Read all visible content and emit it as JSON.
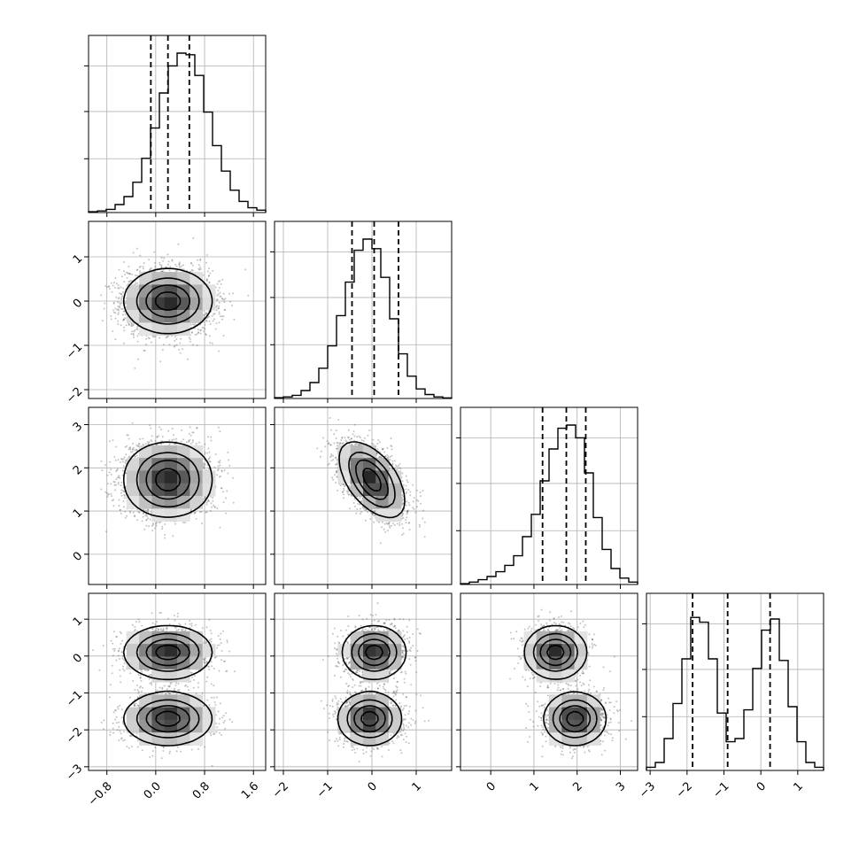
{
  "chart_data": {
    "type": "corner",
    "params": [
      {
        "range": [
          -1.1,
          1.8
        ],
        "ticks": [
          {
            "v": -0.8,
            "label": "−0.8"
          },
          {
            "v": 0.0,
            "label": "0.0"
          },
          {
            "v": 0.8,
            "label": "0.8"
          },
          {
            "v": 1.6,
            "label": "1.6"
          }
        ],
        "quantiles": [
          -0.08,
          0.2,
          0.55
        ]
      },
      {
        "range": [
          -2.2,
          1.8
        ],
        "ticks": [
          {
            "v": -2,
            "label": "−2"
          },
          {
            "v": -1,
            "label": "−1"
          },
          {
            "v": 0,
            "label": "0"
          },
          {
            "v": 1,
            "label": "1"
          }
        ],
        "quantiles": [
          -0.45,
          0.05,
          0.6
        ]
      },
      {
        "range": [
          -0.7,
          3.4
        ],
        "ticks": [
          {
            "v": 0,
            "label": "0"
          },
          {
            "v": 1,
            "label": "1"
          },
          {
            "v": 2,
            "label": "2"
          },
          {
            "v": 3,
            "label": "3"
          }
        ],
        "quantiles": [
          1.2,
          1.75,
          2.2
        ]
      },
      {
        "range": [
          -3.1,
          1.7
        ],
        "ticks": [
          {
            "v": -3,
            "label": "−3"
          },
          {
            "v": -2,
            "label": "−2"
          },
          {
            "v": -1,
            "label": "−1"
          },
          {
            "v": 0,
            "label": "0"
          },
          {
            "v": 1,
            "label": "1"
          }
        ],
        "quantiles": [
          -1.85,
          -0.9,
          0.25
        ]
      }
    ],
    "histograms": [
      [
        0.005,
        0.01,
        0.02,
        0.05,
        0.1,
        0.19,
        0.34,
        0.53,
        0.75,
        0.92,
        1.0,
        0.99,
        0.86,
        0.63,
        0.42,
        0.26,
        0.14,
        0.07,
        0.03,
        0.015
      ],
      [
        0.005,
        0.01,
        0.02,
        0.05,
        0.1,
        0.19,
        0.33,
        0.52,
        0.73,
        0.93,
        1.0,
        0.94,
        0.76,
        0.5,
        0.28,
        0.14,
        0.06,
        0.025,
        0.01,
        0.004
      ],
      [
        0.005,
        0.015,
        0.03,
        0.05,
        0.08,
        0.12,
        0.18,
        0.3,
        0.44,
        0.65,
        0.85,
        0.98,
        1.0,
        0.92,
        0.7,
        0.42,
        0.22,
        0.1,
        0.04,
        0.015
      ],
      [
        0.02,
        0.05,
        0.2,
        0.42,
        0.7,
        0.96,
        0.93,
        0.7,
        0.36,
        0.18,
        0.2,
        0.38,
        0.64,
        0.88,
        0.95,
        0.69,
        0.4,
        0.18,
        0.05,
        0.02
      ]
    ],
    "components": [
      {
        "weight": 0.5,
        "mean": [
          0.2,
          0.05,
          1.5,
          0.1
        ],
        "sd": [
          0.35,
          0.35,
          0.35,
          0.35
        ]
      },
      {
        "weight": 0.5,
        "mean": [
          0.2,
          -0.05,
          1.95,
          -1.7
        ],
        "sd": [
          0.35,
          0.35,
          0.35,
          0.35
        ]
      }
    ],
    "correlations": {
      "1-2": -0.55
    },
    "grid": true,
    "colors": {
      "line": "#000000",
      "grid": "#b0b0b0",
      "scatter": "#555555"
    }
  }
}
